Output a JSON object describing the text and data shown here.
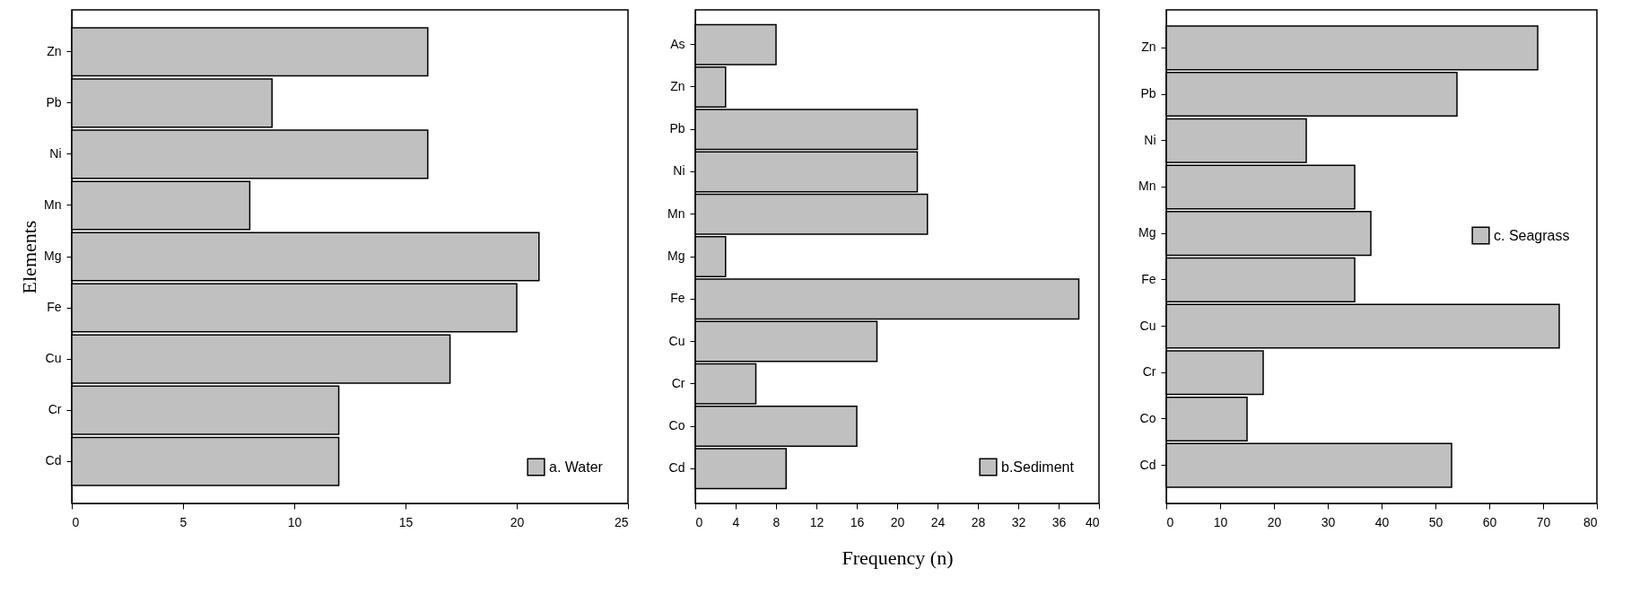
{
  "chart_data": [
    {
      "type": "bar",
      "orientation": "horizontal",
      "ylabel": "Elements",
      "categories": [
        "Zn",
        "Pb",
        "Ni",
        "Mn",
        "Mg",
        "Fe",
        "Cu",
        "Cr",
        "Cd"
      ],
      "series": [
        {
          "name": "a. Water",
          "color": "#c0c0c0",
          "values": [
            16,
            9,
            16,
            8,
            21,
            20,
            17,
            12,
            12
          ]
        }
      ],
      "xlim": [
        0,
        25
      ],
      "xticks": [
        0,
        5,
        10,
        15,
        20,
        25
      ],
      "legend": "bottom right"
    },
    {
      "type": "bar",
      "orientation": "horizontal",
      "xlabel": "Frequency (n)",
      "categories": [
        "As",
        "Zn",
        "Pb",
        "Ni",
        "Mn",
        "Mg",
        "Fe",
        "Cu",
        "Cr",
        "Co",
        "Cd"
      ],
      "series": [
        {
          "name": "b.Sediment",
          "color": "#c0c0c0",
          "values": [
            8,
            3,
            22,
            22,
            23,
            3,
            38,
            18,
            6,
            16,
            9
          ]
        }
      ],
      "xlim": [
        0,
        40
      ],
      "xticks": [
        0,
        4,
        8,
        12,
        16,
        20,
        24,
        28,
        32,
        36,
        40
      ],
      "legend": "bottom right"
    },
    {
      "type": "bar",
      "orientation": "horizontal",
      "categories": [
        "Zn",
        "Pb",
        "Ni",
        "Mn",
        "Mg",
        "Fe",
        "Cu",
        "Cr",
        "Co",
        "Cd"
      ],
      "series": [
        {
          "name": "c. Seagrass",
          "color": "#c0c0c0",
          "values": [
            69,
            54,
            26,
            35,
            38,
            35,
            73,
            18,
            15,
            53
          ]
        }
      ],
      "xlim": [
        0,
        80
      ],
      "xticks": [
        0,
        10,
        20,
        30,
        40,
        50,
        60,
        70,
        80
      ],
      "legend": "right"
    }
  ]
}
